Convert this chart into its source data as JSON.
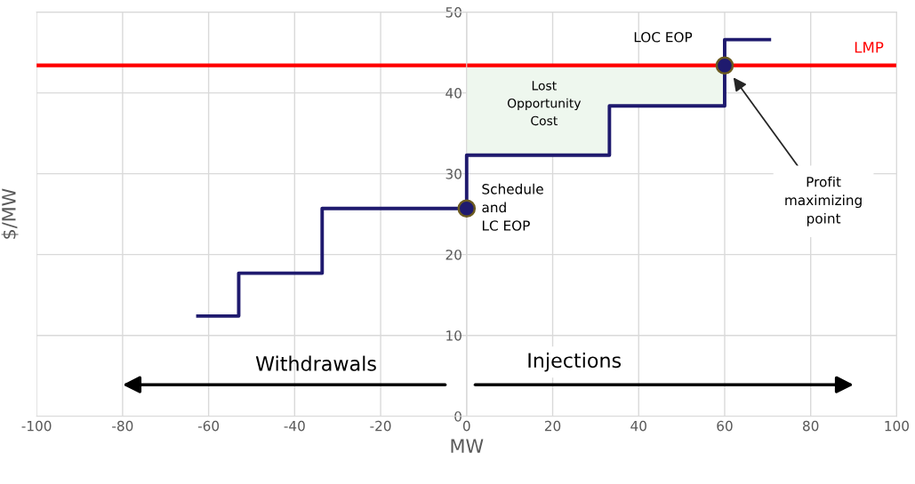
{
  "chart_data": {
    "type": "step",
    "xlabel": "MW",
    "ylabel": "$/MW",
    "xlim": [
      -100,
      100
    ],
    "xticks": [
      -100,
      -80,
      -60,
      -40,
      -20,
      0,
      20,
      40,
      60,
      80,
      100
    ],
    "ylim": [
      0,
      50
    ],
    "yticks": [
      0,
      10,
      20,
      30,
      40,
      50
    ],
    "grid": true,
    "legend": false,
    "series": [
      {
        "x": [
          -62.5,
          -53,
          -33.6,
          0,
          33.2,
          60,
          70.4
        ],
        "values": [
          12.4,
          17.7,
          25.7,
          32.3,
          38.4,
          46.6,
          46.6
        ],
        "color": "#1f1a6e"
      },
      {
        "type": "scatter",
        "x": [
          0,
          60
        ],
        "values": [
          25.7,
          43.4
        ],
        "color": "#1f1a6e",
        "marker": "circle"
      }
    ],
    "ref_lines": [
      {
        "axis": "y",
        "value": 43.4,
        "label": "LMP",
        "color": "#ff0000"
      }
    ],
    "annotations": [
      "Schedule\nand\nLC EOP",
      "LOC EOP",
      "Profit\nmaximizing\npoint",
      "Lost\nOpportunity\nCost",
      "Withdrawals",
      "Injections"
    ]
  }
}
